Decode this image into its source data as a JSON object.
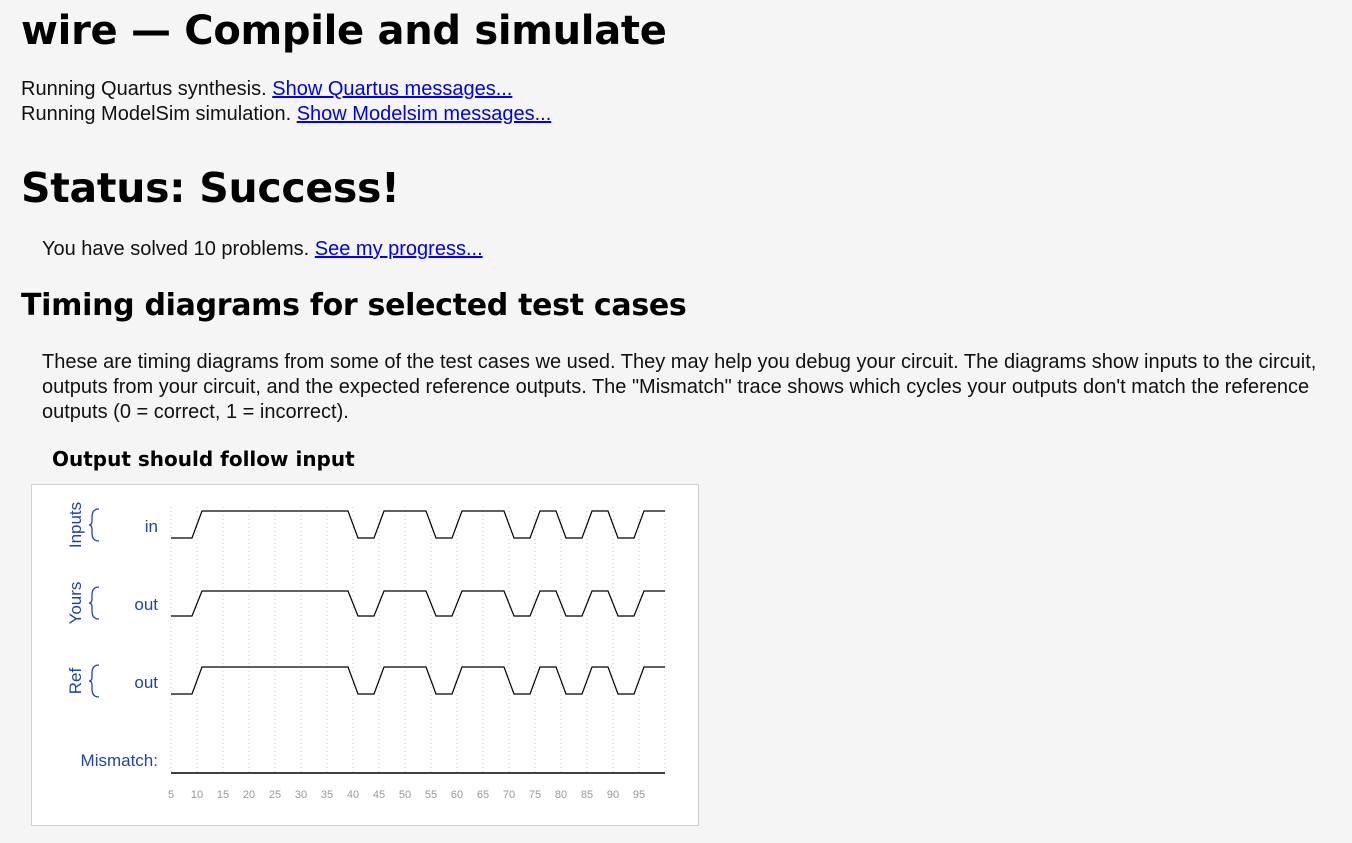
{
  "page": {
    "title": "wire — Compile and simulate",
    "quartus_text": "Running Quartus synthesis.",
    "quartus_link": "Show Quartus messages...",
    "modelsim_text": "Running ModelSim simulation.",
    "modelsim_link": "Show Modelsim messages...",
    "status": "Status: Success!",
    "solved_text": "You have solved 10 problems.",
    "progress_link": "See my progress...",
    "timing_heading": "Timing diagrams for selected test cases",
    "timing_description": "These are timing diagrams from some of the test cases we used. They may help you debug your circuit. The diagrams show inputs to the circuit, outputs from your circuit, and the expected reference outputs. The \"Mismatch\" trace shows which cycles your outputs don't match the reference outputs (0 = correct, 1 = incorrect).",
    "chart_caption": "Output should follow input"
  },
  "colors": {
    "link": "#0000ee",
    "label": "#2244aa",
    "trace": "#000000",
    "grid": "#cccccc",
    "tick": "#999999"
  },
  "chart_data": {
    "type": "timing",
    "title": "Output should follow input",
    "ticks": [
      5,
      10,
      15,
      20,
      25,
      30,
      35,
      40,
      45,
      50,
      55,
      60,
      65,
      70,
      75,
      80,
      85,
      90,
      95
    ],
    "xlim": [
      5,
      100
    ],
    "groups": [
      {
        "label": "Inputs",
        "signals": [
          "in"
        ]
      },
      {
        "label": "Yours",
        "signals": [
          "out"
        ]
      },
      {
        "label": "Ref",
        "signals": [
          "out"
        ]
      }
    ],
    "signals": [
      {
        "name": "in",
        "group": "Inputs",
        "transitions": [
          [
            5,
            0
          ],
          [
            10,
            1
          ],
          [
            40,
            0
          ],
          [
            45,
            1
          ],
          [
            55,
            0
          ],
          [
            60,
            1
          ],
          [
            70,
            0
          ],
          [
            75,
            1
          ],
          [
            80,
            0
          ],
          [
            85,
            1
          ],
          [
            90,
            0
          ],
          [
            95,
            1
          ]
        ]
      },
      {
        "name": "out",
        "group": "Yours",
        "transitions": [
          [
            5,
            0
          ],
          [
            10,
            1
          ],
          [
            40,
            0
          ],
          [
            45,
            1
          ],
          [
            55,
            0
          ],
          [
            60,
            1
          ],
          [
            70,
            0
          ],
          [
            75,
            1
          ],
          [
            80,
            0
          ],
          [
            85,
            1
          ],
          [
            90,
            0
          ],
          [
            95,
            1
          ]
        ]
      },
      {
        "name": "out",
        "group": "Ref",
        "transitions": [
          [
            5,
            0
          ],
          [
            10,
            1
          ],
          [
            40,
            0
          ],
          [
            45,
            1
          ],
          [
            55,
            0
          ],
          [
            60,
            1
          ],
          [
            70,
            0
          ],
          [
            75,
            1
          ],
          [
            80,
            0
          ],
          [
            85,
            1
          ],
          [
            90,
            0
          ],
          [
            95,
            1
          ]
        ]
      }
    ],
    "mismatch": {
      "label": "Mismatch:",
      "transitions": [
        [
          5,
          0
        ]
      ]
    }
  }
}
